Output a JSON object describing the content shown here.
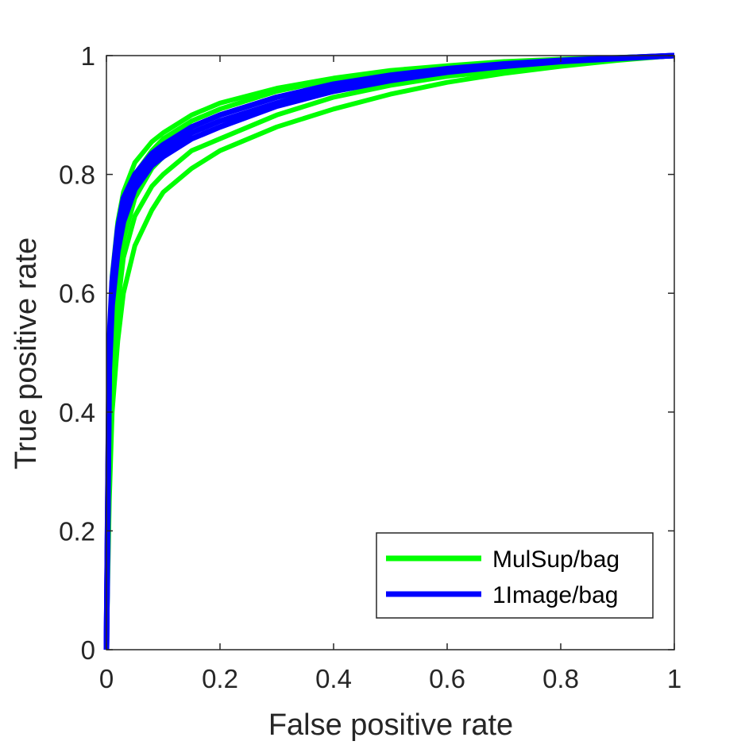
{
  "chart_data": {
    "type": "line",
    "title": "",
    "xlabel": "False positive rate",
    "ylabel": "True positive rate",
    "xlim": [
      0,
      1
    ],
    "ylim": [
      0,
      1
    ],
    "x_ticks": [
      "0",
      "0.2",
      "0.4",
      "0.6",
      "0.8",
      "1"
    ],
    "y_ticks": [
      "0",
      "0.2",
      "0.4",
      "0.6",
      "0.8",
      "1"
    ],
    "grid": false,
    "legend_position": "bottom-right",
    "legend": [
      "MulSup/bag",
      "1Image/bag"
    ],
    "series": [
      {
        "name": "MulSup/bag",
        "color": "#00ff00",
        "note": "band of repeated-run curves",
        "curves": [
          {
            "x": [
              0,
              0.005,
              0.01,
              0.02,
              0.03,
              0.05,
              0.08,
              0.1,
              0.15,
              0.2,
              0.3,
              0.4,
              0.5,
              0.6,
              0.7,
              0.8,
              0.9,
              1
            ],
            "y": [
              0,
              0.48,
              0.6,
              0.7,
              0.75,
              0.8,
              0.84,
              0.86,
              0.89,
              0.91,
              0.94,
              0.96,
              0.97,
              0.98,
              0.985,
              0.99,
              0.995,
              1
            ]
          },
          {
            "x": [
              0,
              0.005,
              0.01,
              0.02,
              0.03,
              0.05,
              0.08,
              0.1,
              0.15,
              0.2,
              0.3,
              0.4,
              0.5,
              0.6,
              0.7,
              0.8,
              0.9,
              1
            ],
            "y": [
              0,
              0.42,
              0.56,
              0.67,
              0.73,
              0.79,
              0.83,
              0.85,
              0.88,
              0.9,
              0.93,
              0.95,
              0.965,
              0.975,
              0.985,
              0.99,
              0.995,
              1
            ]
          },
          {
            "x": [
              0,
              0.005,
              0.01,
              0.02,
              0.03,
              0.05,
              0.08,
              0.1,
              0.15,
              0.2,
              0.3,
              0.4,
              0.5,
              0.6,
              0.7,
              0.8,
              0.9,
              1
            ],
            "y": [
              0,
              0.35,
              0.5,
              0.62,
              0.69,
              0.76,
              0.81,
              0.83,
              0.86,
              0.88,
              0.915,
              0.94,
              0.955,
              0.97,
              0.98,
              0.988,
              0.994,
              1
            ]
          },
          {
            "x": [
              0,
              0.005,
              0.01,
              0.02,
              0.03,
              0.05,
              0.08,
              0.1,
              0.15,
              0.2,
              0.3,
              0.4,
              0.5,
              0.6,
              0.7,
              0.8,
              0.9,
              1
            ],
            "y": [
              0,
              0.3,
              0.45,
              0.58,
              0.66,
              0.73,
              0.78,
              0.8,
              0.84,
              0.86,
              0.9,
              0.93,
              0.95,
              0.965,
              0.975,
              0.985,
              0.993,
              1
            ]
          },
          {
            "x": [
              0,
              0.005,
              0.01,
              0.02,
              0.03,
              0.05,
              0.08,
              0.1,
              0.15,
              0.2,
              0.3,
              0.4,
              0.5,
              0.6,
              0.7,
              0.8,
              0.9,
              1
            ],
            "y": [
              0,
              0.25,
              0.4,
              0.52,
              0.6,
              0.68,
              0.74,
              0.77,
              0.81,
              0.84,
              0.88,
              0.91,
              0.935,
              0.955,
              0.97,
              0.982,
              0.992,
              1
            ]
          },
          {
            "x": [
              0,
              0.005,
              0.01,
              0.02,
              0.03,
              0.05,
              0.08,
              0.1,
              0.15,
              0.2,
              0.3,
              0.4,
              0.5,
              0.6,
              0.7,
              0.8,
              0.9,
              1
            ],
            "y": [
              0,
              0.5,
              0.63,
              0.72,
              0.77,
              0.82,
              0.855,
              0.87,
              0.9,
              0.92,
              0.945,
              0.962,
              0.975,
              0.983,
              0.99,
              0.994,
              0.997,
              1
            ]
          }
        ]
      },
      {
        "name": "1Image/bag",
        "color": "#0000ff",
        "note": "band of repeated-run curves",
        "curves": [
          {
            "x": [
              0,
              0.005,
              0.01,
              0.02,
              0.03,
              0.05,
              0.08,
              0.1,
              0.15,
              0.2,
              0.3,
              0.4,
              0.5,
              0.6,
              0.7,
              0.8,
              0.9,
              1
            ],
            "y": [
              0,
              0.52,
              0.62,
              0.71,
              0.76,
              0.8,
              0.835,
              0.85,
              0.88,
              0.9,
              0.93,
              0.952,
              0.967,
              0.978,
              0.986,
              0.992,
              0.996,
              1
            ]
          },
          {
            "x": [
              0,
              0.005,
              0.01,
              0.02,
              0.03,
              0.05,
              0.08,
              0.1,
              0.15,
              0.2,
              0.3,
              0.4,
              0.5,
              0.6,
              0.7,
              0.8,
              0.9,
              1
            ],
            "y": [
              0,
              0.5,
              0.6,
              0.69,
              0.74,
              0.79,
              0.825,
              0.84,
              0.87,
              0.89,
              0.92,
              0.945,
              0.962,
              0.975,
              0.984,
              0.991,
              0.996,
              1
            ]
          },
          {
            "x": [
              0,
              0.005,
              0.01,
              0.02,
              0.03,
              0.05,
              0.08,
              0.1,
              0.15,
              0.2,
              0.3,
              0.4,
              0.5,
              0.6,
              0.7,
              0.8,
              0.9,
              1
            ],
            "y": [
              0,
              0.47,
              0.58,
              0.67,
              0.72,
              0.775,
              0.815,
              0.83,
              0.86,
              0.88,
              0.915,
              0.94,
              0.958,
              0.972,
              0.982,
              0.99,
              0.995,
              1
            ]
          }
        ]
      }
    ]
  }
}
